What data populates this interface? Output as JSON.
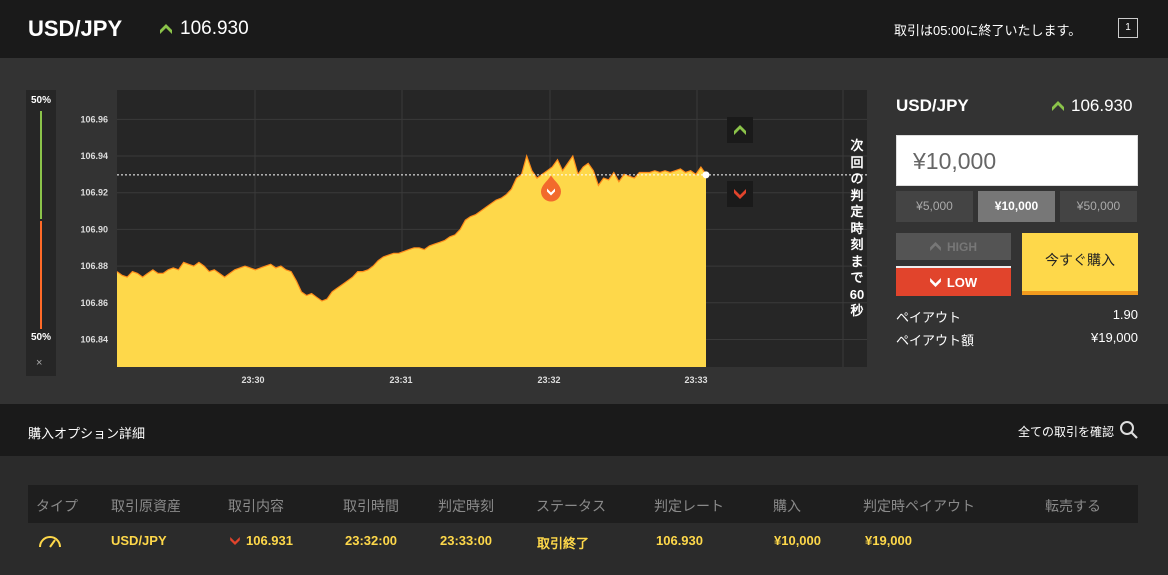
{
  "header": {
    "pair": "USD/JPY",
    "rate": "106.930",
    "notice": "取引は05:00に終了いたします。",
    "window_button": "1"
  },
  "sentiment": {
    "top": "50%",
    "bottom": "50%",
    "high_pct": 50,
    "low_pct": 50,
    "close": "×"
  },
  "chart_data": {
    "type": "area",
    "x_ticks": [
      "23:30",
      "23:31",
      "23:32",
      "23:33"
    ],
    "y_ticks": [
      "106.96",
      "106.94",
      "106.92",
      "106.90",
      "106.88",
      "106.86",
      "106.84"
    ],
    "ylim": [
      106.825,
      106.976
    ],
    "current_rate": 106.93,
    "marker_rate": 106.931,
    "color": "#fed84a",
    "line_color": "#ff8c1a",
    "y": [
      106.877,
      106.875,
      106.874,
      106.877,
      106.876,
      106.874,
      106.876,
      106.878,
      106.876,
      106.876,
      106.878,
      106.879,
      106.878,
      106.882,
      106.881,
      106.88,
      106.882,
      106.88,
      106.877,
      106.878,
      106.876,
      106.874,
      106.876,
      106.878,
      106.879,
      106.88,
      106.879,
      106.878,
      106.879,
      106.88,
      106.881,
      106.879,
      106.88,
      106.878,
      106.877,
      106.872,
      106.866,
      106.864,
      106.865,
      106.863,
      106.861,
      106.862,
      106.866,
      106.868,
      106.87,
      106.872,
      106.874,
      106.877,
      106.877,
      106.878,
      106.88,
      106.883,
      106.885,
      106.886,
      106.887,
      106.887,
      106.888,
      106.889,
      106.89,
      106.89,
      106.889,
      106.891,
      106.892,
      106.893,
      106.894,
      106.896,
      106.897,
      106.9,
      106.905,
      106.907,
      106.908,
      106.91,
      106.912,
      106.914,
      106.916,
      106.917,
      106.919,
      106.922,
      106.928,
      106.93,
      106.94,
      106.932,
      106.928,
      106.93,
      106.932,
      106.934,
      106.938,
      106.932,
      106.936,
      106.94,
      106.93,
      106.934,
      106.936,
      106.932,
      106.924,
      106.928,
      106.927,
      106.931,
      106.926,
      106.93,
      106.929,
      106.928,
      106.931,
      106.931,
      106.931,
      106.932,
      106.931,
      106.932,
      106.931,
      106.932,
      106.933,
      106.931,
      106.932,
      106.93,
      106.934,
      106.93
    ]
  },
  "trade_buttons": {
    "high_label": "HIGH",
    "low_label": "LOW",
    "countdown": "次回の判定時刻まで60秒"
  },
  "panel": {
    "pair": "USD/JPY",
    "rate": "106.930",
    "amount": "¥10,000",
    "amounts": [
      "¥5,000",
      "¥10,000",
      "¥50,000"
    ],
    "selected_amount_index": 1,
    "high_label": "HIGH",
    "low_label": "LOW",
    "buy_label": "今すぐ購入",
    "payout_label": "ペイアウト",
    "payout_value": "1.90",
    "payout_amount_label": "ペイアウト額",
    "payout_amount_value": "¥19,000"
  },
  "section": {
    "title": "購入オプション詳細",
    "link": "全ての取引を確認"
  },
  "table": {
    "headers": [
      "タイプ",
      "取引原資産",
      "取引内容",
      "取引時間",
      "判定時刻",
      "ステータス",
      "判定レート",
      "購入",
      "判定時ペイアウト",
      "転売する"
    ],
    "row": {
      "asset": "USD/JPY",
      "content": "106.931",
      "trade_time": "23:32:00",
      "judge_time": "23:33:00",
      "status": "取引終了",
      "judge_rate": "106.930",
      "purchase": "¥10,000",
      "payout": "¥19,000"
    }
  },
  "colors": {
    "accent_yellow": "#fed84a",
    "up_green": "#8bc34a",
    "down_red": "#e1442c"
  }
}
